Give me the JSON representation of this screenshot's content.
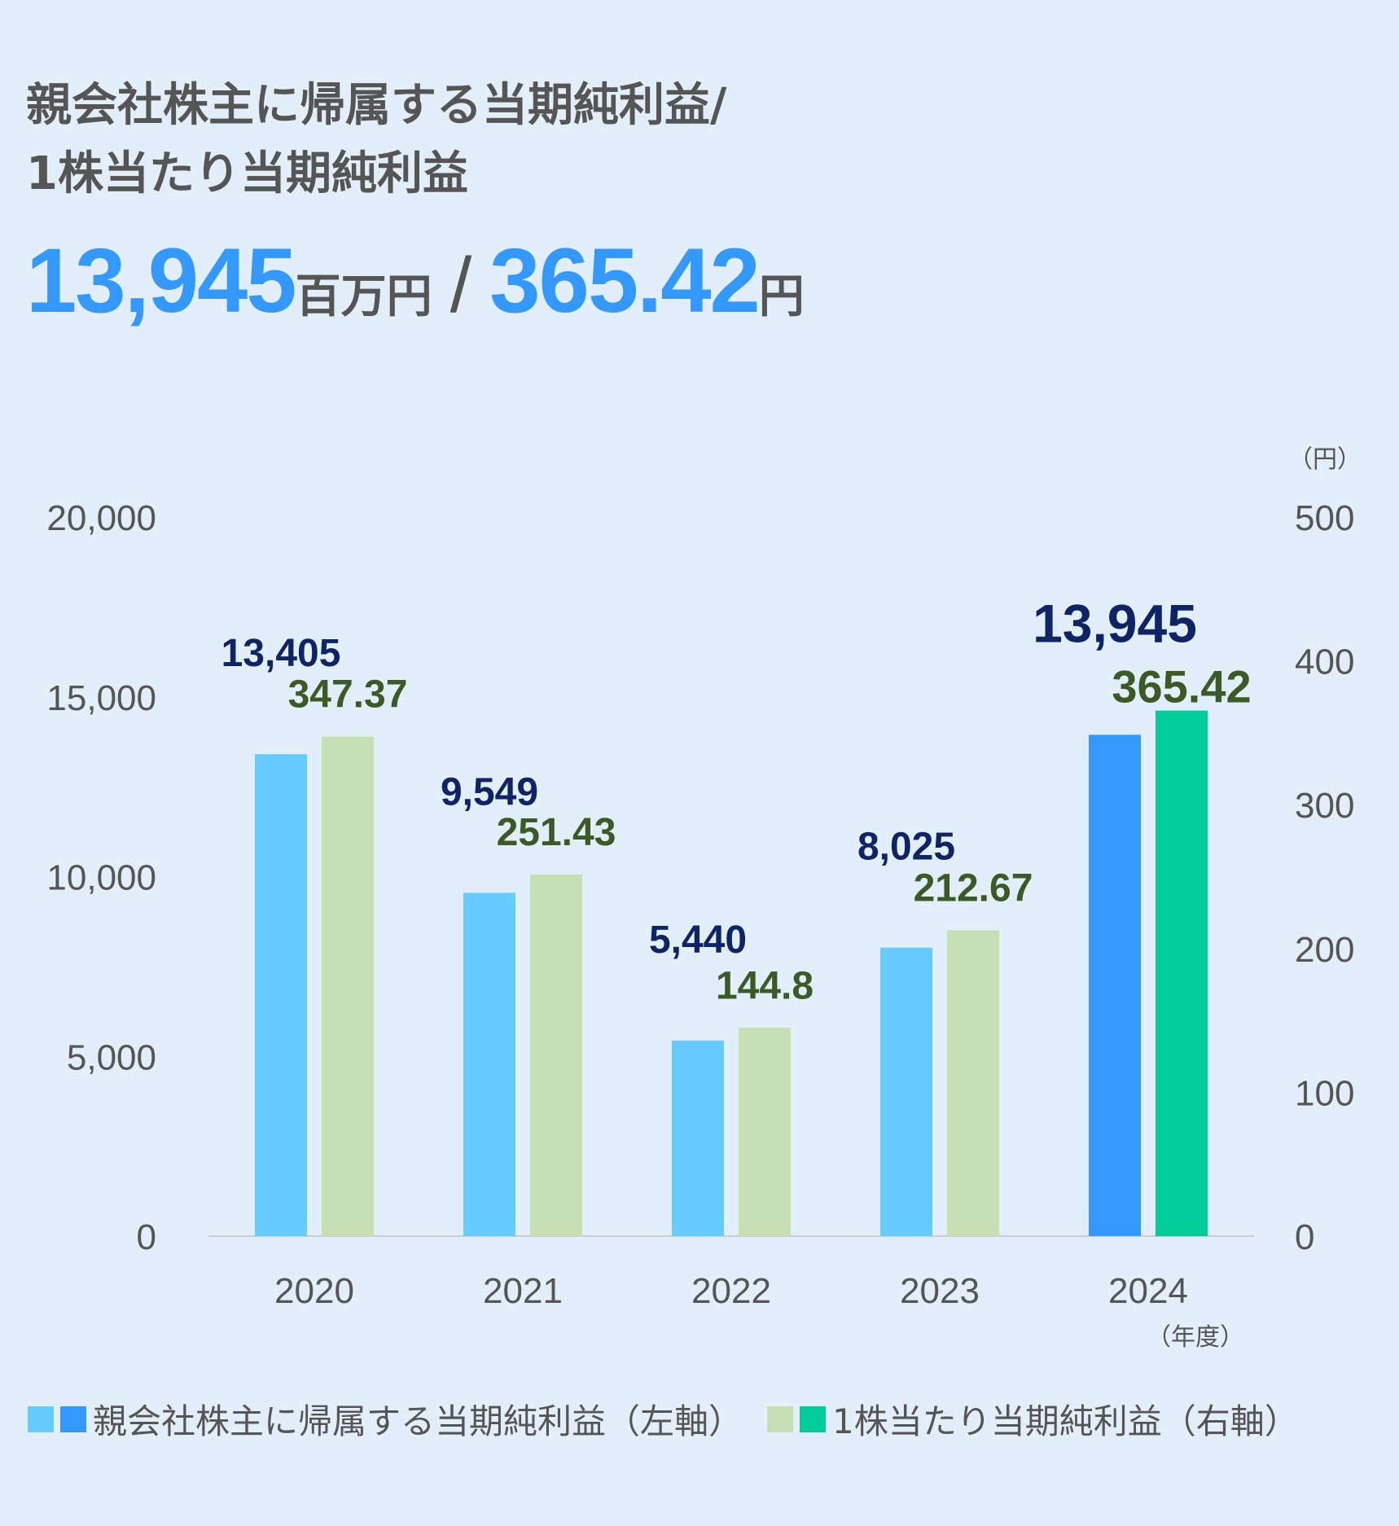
{
  "title_line1": "親会社株主に帰属する当期純利益/",
  "title_line2": "1株当たり当期純利益",
  "headline": {
    "value1": "13,945",
    "unit1": "百万円",
    "separator": "/",
    "value2": "365.42",
    "unit2": "円"
  },
  "chart_data": {
    "type": "bar",
    "categories": [
      "2020",
      "2021",
      "2022",
      "2023",
      "2024"
    ],
    "series": [
      {
        "name": "親会社株主に帰属する当期純利益（左軸）",
        "axis": "left",
        "values": [
          13405,
          9549,
          5440,
          8025,
          13945
        ],
        "labels": [
          "13,405",
          "9,549",
          "5,440",
          "8,025",
          "13,945"
        ]
      },
      {
        "name": "1株当たり当期純利益（右軸）",
        "axis": "right",
        "values": [
          347.37,
          251.43,
          144.8,
          212.67,
          365.42
        ],
        "labels": [
          "347.37",
          "251.43",
          "144.8",
          "212.67",
          "365.42"
        ]
      }
    ],
    "left_axis": {
      "ylim": [
        0,
        20000
      ],
      "ticks": [
        0,
        5000,
        10000,
        15000,
        20000
      ],
      "tick_labels": [
        "0",
        "5,000",
        "10,000",
        "15,000",
        "20,000"
      ]
    },
    "right_axis": {
      "ylim": [
        0,
        500
      ],
      "ticks": [
        0,
        100,
        200,
        300,
        400,
        500
      ],
      "tick_labels": [
        "0",
        "100",
        "200",
        "300",
        "400",
        "500"
      ],
      "unit": "（円）"
    },
    "x_unit": "（年度）",
    "highlight_index": 4,
    "colors": {
      "left": "#66ccff",
      "left_highlight": "#3399ff",
      "right": "#c6e0b4",
      "right_highlight": "#00cc99",
      "baseline": "#cccccc"
    }
  },
  "legend": {
    "label_left": "親会社株主に帰属する当期純利益（左軸）",
    "label_right": "1株当たり当期純利益（右軸）"
  }
}
